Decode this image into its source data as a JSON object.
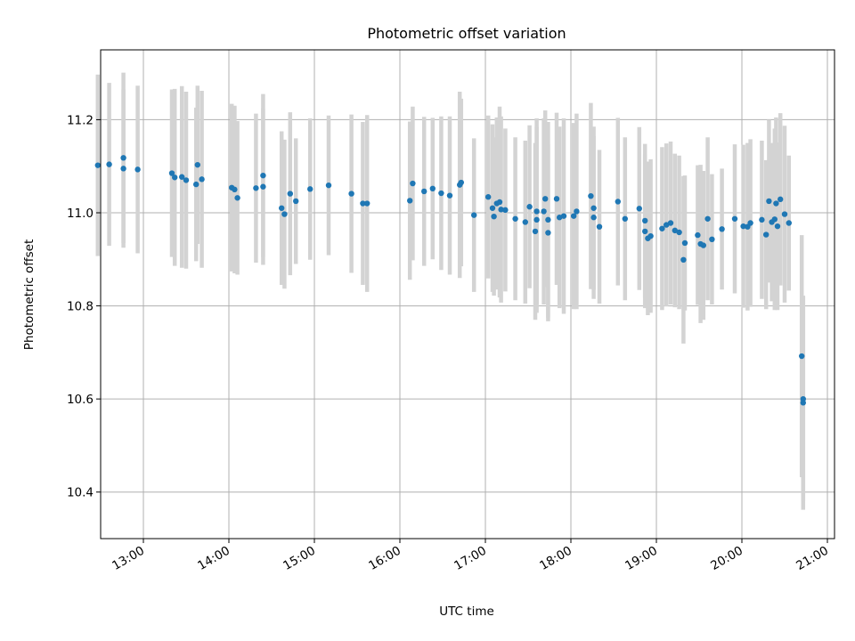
{
  "chart_data": {
    "type": "scatter",
    "title": "Photometric offset variation",
    "xlabel": "UTC time",
    "ylabel": "Photometric offset",
    "xlim": [
      "12:30",
      "21:05"
    ],
    "ylim": [
      10.3,
      11.35
    ],
    "x_ticks": [
      "13:00",
      "14:00",
      "15:00",
      "16:00",
      "17:00",
      "18:00",
      "19:00",
      "20:00",
      "21:00"
    ],
    "y_ticks": [
      "10.4",
      "10.6",
      "10.8",
      "11.0",
      "11.2"
    ],
    "grid": true,
    "point_color": "#1f77b4",
    "errorbar_color": "#d3d3d3",
    "series": [
      {
        "points": [
          [
            "12:28",
            11.102,
            0.195
          ],
          [
            "12:36",
            11.104,
            0.175
          ],
          [
            "12:46",
            11.118,
            0.183
          ],
          [
            "12:46",
            11.095,
            0.17
          ],
          [
            "12:56",
            11.093,
            0.18
          ],
          [
            "13:20",
            11.085,
            0.18
          ],
          [
            "13:22",
            11.076,
            0.19
          ],
          [
            "13:27",
            11.077,
            0.195
          ],
          [
            "13:30",
            11.07,
            0.19
          ],
          [
            "13:37",
            11.061,
            0.165
          ],
          [
            "13:38",
            11.103,
            0.17
          ],
          [
            "13:41",
            11.072,
            0.19
          ],
          [
            "14:02",
            11.054,
            0.18
          ],
          [
            "14:04",
            11.05,
            0.18
          ],
          [
            "14:06",
            11.032,
            0.165
          ],
          [
            "14:19",
            11.053,
            0.16
          ],
          [
            "14:24",
            11.056,
            0.168
          ],
          [
            "14:24",
            11.08,
            0.175
          ],
          [
            "14:37",
            11.01,
            0.165
          ],
          [
            "14:39",
            10.997,
            0.16
          ],
          [
            "14:43",
            11.041,
            0.175
          ],
          [
            "14:47",
            11.025,
            0.135
          ],
          [
            "14:57",
            11.051,
            0.152
          ],
          [
            "15:10",
            11.059,
            0.15
          ],
          [
            "15:26",
            11.041,
            0.17
          ],
          [
            "15:34",
            11.02,
            0.175
          ],
          [
            "15:37",
            11.02,
            0.19
          ],
          [
            "16:07",
            11.026,
            0.17
          ],
          [
            "16:09",
            11.063,
            0.165
          ],
          [
            "16:17",
            11.046,
            0.16
          ],
          [
            "16:23",
            11.052,
            0.152
          ],
          [
            "16:29",
            11.042,
            0.165
          ],
          [
            "16:35",
            11.037,
            0.17
          ],
          [
            "16:42",
            11.06,
            0.2
          ],
          [
            "16:43",
            11.065,
            0.18
          ],
          [
            "16:52",
            10.995,
            0.165
          ],
          [
            "17:02",
            11.034,
            0.175
          ],
          [
            "17:05",
            11.01,
            0.18
          ],
          [
            "17:06",
            10.992,
            0.17
          ],
          [
            "17:08",
            11.02,
            0.185
          ],
          [
            "17:10",
            11.023,
            0.205
          ],
          [
            "17:11",
            11.007,
            0.2
          ],
          [
            "17:14",
            11.006,
            0.175
          ],
          [
            "17:21",
            10.987,
            0.175
          ],
          [
            "17:28",
            10.98,
            0.175
          ],
          [
            "17:31",
            11.013,
            0.175
          ],
          [
            "17:35",
            10.96,
            0.19
          ],
          [
            "17:36",
            11.003,
            0.2
          ],
          [
            "17:36",
            10.985,
            0.2
          ],
          [
            "17:41",
            11.003,
            0.2
          ],
          [
            "17:42",
            11.03,
            0.19
          ],
          [
            "17:44",
            10.957,
            0.19
          ],
          [
            "17:44",
            10.985,
            0.21
          ],
          [
            "17:50",
            11.03,
            0.185
          ],
          [
            "17:52",
            10.99,
            0.195
          ],
          [
            "17:55",
            10.993,
            0.21
          ],
          [
            "18:02",
            10.993,
            0.2
          ],
          [
            "18:04",
            11.003,
            0.21
          ],
          [
            "18:14",
            11.036,
            0.2
          ],
          [
            "18:16",
            10.99,
            0.175
          ],
          [
            "18:16",
            11.01,
            0.175
          ],
          [
            "18:20",
            10.97,
            0.165
          ],
          [
            "18:33",
            11.024,
            0.18
          ],
          [
            "18:38",
            10.987,
            0.175
          ],
          [
            "18:48",
            11.009,
            0.175
          ],
          [
            "18:52",
            10.983,
            0.165
          ],
          [
            "18:52",
            10.96,
            0.165
          ],
          [
            "18:54",
            10.945,
            0.165
          ],
          [
            "18:56",
            10.95,
            0.165
          ],
          [
            "19:04",
            10.966,
            0.175
          ],
          [
            "19:07",
            10.974,
            0.175
          ],
          [
            "19:10",
            10.978,
            0.175
          ],
          [
            "19:13",
            10.962,
            0.165
          ],
          [
            "19:16",
            10.958,
            0.165
          ],
          [
            "19:19",
            10.899,
            0.18
          ],
          [
            "19:20",
            10.935,
            0.145
          ],
          [
            "19:29",
            10.952,
            0.15
          ],
          [
            "19:31",
            10.933,
            0.17
          ],
          [
            "19:33",
            10.93,
            0.16
          ],
          [
            "19:36",
            10.987,
            0.175
          ],
          [
            "19:39",
            10.943,
            0.14
          ],
          [
            "19:46",
            10.965,
            0.13
          ],
          [
            "19:55",
            10.987,
            0.16
          ],
          [
            "20:01",
            10.971,
            0.175
          ],
          [
            "20:04",
            10.97,
            0.18
          ],
          [
            "20:06",
            10.978,
            0.18
          ],
          [
            "20:14",
            10.985,
            0.17
          ],
          [
            "20:17",
            10.953,
            0.16
          ],
          [
            "20:19",
            11.025,
            0.175
          ],
          [
            "20:21",
            10.98,
            0.17
          ],
          [
            "20:23",
            10.986,
            0.195
          ],
          [
            "20:24",
            11.02,
            0.185
          ],
          [
            "20:25",
            10.971,
            0.18
          ],
          [
            "20:27",
            11.029,
            0.185
          ],
          [
            "20:30",
            10.997,
            0.19
          ],
          [
            "20:33",
            10.978,
            0.145
          ],
          [
            "20:42",
            10.692,
            0.26
          ],
          [
            "20:43",
            10.6,
            0.22
          ],
          [
            "20:43",
            10.592,
            0.23
          ]
        ]
      }
    ]
  }
}
